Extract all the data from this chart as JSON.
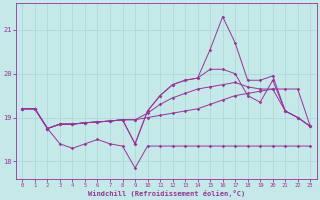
{
  "xlabel": "Windchill (Refroidissement éolien,°C)",
  "xlim": [
    -0.5,
    23.5
  ],
  "ylim": [
    17.6,
    21.6
  ],
  "yticks": [
    18,
    19,
    20,
    21
  ],
  "xticks": [
    0,
    1,
    2,
    3,
    4,
    5,
    6,
    7,
    8,
    9,
    10,
    11,
    12,
    13,
    14,
    15,
    16,
    17,
    18,
    19,
    20,
    21,
    22,
    23
  ],
  "bg_color": "#c5e8e8",
  "line_color": "#993399",
  "grid_color": "#aed6d6",
  "series": [
    {
      "x": [
        0,
        1,
        2,
        3,
        4,
        5,
        6,
        7,
        8,
        9,
        10,
        11,
        12,
        13,
        14,
        15,
        16,
        17,
        18,
        19,
        20,
        21,
        22,
        23
      ],
      "y": [
        19.2,
        19.2,
        18.75,
        18.4,
        18.3,
        18.4,
        18.5,
        18.4,
        18.35,
        17.85,
        18.35,
        18.35,
        18.35,
        18.35,
        18.35,
        18.35,
        18.35,
        18.35,
        18.35,
        18.35,
        18.35,
        18.35,
        18.35,
        18.35
      ]
    },
    {
      "x": [
        0,
        1,
        2,
        3,
        4,
        5,
        6,
        7,
        8,
        9,
        10,
        11,
        12,
        13,
        14,
        15,
        16,
        17,
        18,
        19,
        20,
        21,
        22,
        23
      ],
      "y": [
        19.2,
        19.2,
        18.75,
        18.85,
        18.85,
        18.88,
        18.9,
        18.92,
        18.95,
        18.95,
        19.0,
        19.05,
        19.1,
        19.15,
        19.2,
        19.3,
        19.4,
        19.5,
        19.55,
        19.6,
        19.65,
        19.65,
        19.65,
        18.8
      ]
    },
    {
      "x": [
        0,
        1,
        2,
        3,
        4,
        5,
        6,
        7,
        8,
        9,
        10,
        11,
        12,
        13,
        14,
        15,
        16,
        17,
        18,
        19,
        20,
        21,
        22,
        23
      ],
      "y": [
        19.2,
        19.2,
        18.75,
        18.85,
        18.85,
        18.88,
        18.9,
        18.92,
        18.95,
        18.95,
        19.1,
        19.3,
        19.45,
        19.55,
        19.65,
        19.7,
        19.75,
        19.8,
        19.7,
        19.65,
        19.65,
        19.15,
        19.0,
        18.8
      ]
    },
    {
      "x": [
        0,
        1,
        2,
        3,
        4,
        5,
        6,
        7,
        8,
        9,
        10,
        11,
        12,
        13,
        14,
        15,
        16,
        17,
        18,
        19,
        20,
        21,
        22,
        23
      ],
      "y": [
        19.2,
        19.2,
        18.75,
        18.85,
        18.85,
        18.88,
        18.9,
        18.92,
        18.95,
        18.4,
        19.15,
        19.5,
        19.75,
        19.85,
        19.9,
        20.1,
        20.1,
        20.0,
        19.5,
        19.35,
        19.85,
        19.15,
        19.0,
        18.8
      ]
    },
    {
      "x": [
        0,
        1,
        2,
        3,
        4,
        5,
        6,
        7,
        8,
        9,
        10,
        11,
        12,
        13,
        14,
        15,
        16,
        17,
        18,
        19,
        20,
        21,
        22,
        23
      ],
      "y": [
        19.2,
        19.2,
        18.75,
        18.85,
        18.85,
        18.88,
        18.9,
        18.92,
        18.95,
        18.4,
        19.15,
        19.5,
        19.75,
        19.85,
        19.9,
        20.55,
        21.3,
        20.7,
        19.85,
        19.85,
        19.95,
        19.15,
        19.0,
        18.8
      ]
    }
  ]
}
